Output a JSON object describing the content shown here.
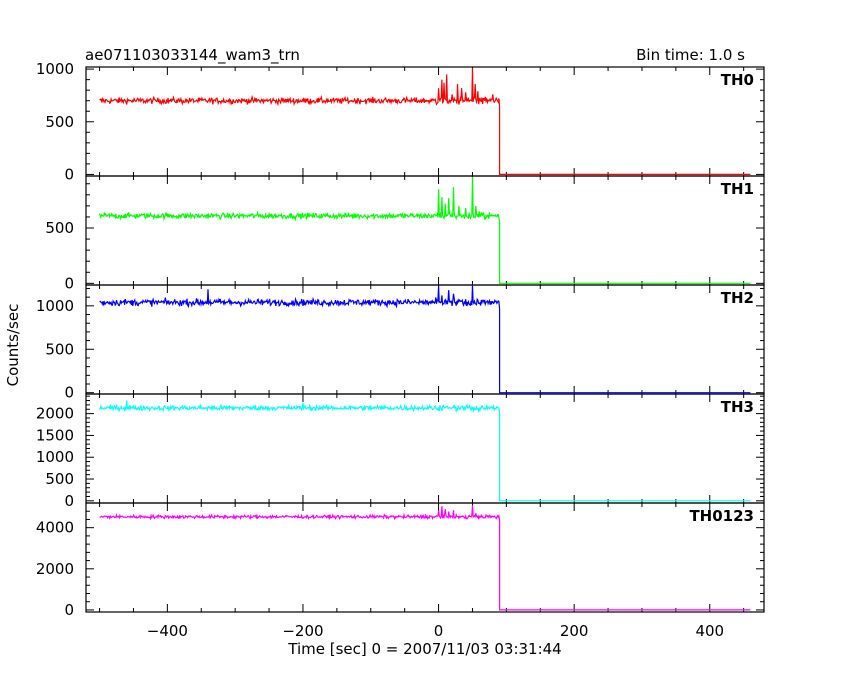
{
  "chart_data": {
    "type": "line",
    "title_left": "ae071103033144_wam3_trn",
    "title_right": "Bin time: 1.0 s",
    "xlabel": "Time [sec] 0 = 2007/11/03 03:31:44",
    "ylabel": "Counts/sec",
    "xlim": [
      -520,
      480
    ],
    "x_ticks": [
      -400,
      -200,
      0,
      200,
      400
    ],
    "x_tick_labels": [
      "−400",
      "−200",
      "0",
      "200",
      "400"
    ],
    "grid": false,
    "panels": [
      {
        "name": "TH0",
        "color": "#ff0000",
        "ylim": [
          -15,
          1020
        ],
        "y_ticks": [
          0,
          500,
          1000
        ],
        "y_tick_labels": [
          "0",
          "500",
          "1000"
        ],
        "baseline": 700,
        "noise": 28,
        "cutoff_x": 90,
        "x_range": [
          -500,
          460
        ],
        "spikes": [
          [
            0,
            820
          ],
          [
            5,
            900
          ],
          [
            8,
            870
          ],
          [
            12,
            950
          ],
          [
            20,
            760
          ],
          [
            28,
            860
          ],
          [
            34,
            820
          ],
          [
            40,
            780
          ],
          [
            50,
            1010
          ],
          [
            54,
            860
          ],
          [
            58,
            790
          ],
          [
            80,
            760
          ]
        ]
      },
      {
        "name": "TH1",
        "color": "#00ff00",
        "ylim": [
          -15,
          970
        ],
        "y_ticks": [
          0,
          500
        ],
        "y_tick_labels": [
          "0",
          "500"
        ],
        "baseline": 610,
        "noise": 25,
        "cutoff_x": 90,
        "x_range": [
          -500,
          460
        ],
        "spikes": [
          [
            0,
            850
          ],
          [
            5,
            780
          ],
          [
            10,
            720
          ],
          [
            15,
            770
          ],
          [
            22,
            870
          ],
          [
            30,
            700
          ],
          [
            40,
            680
          ],
          [
            50,
            960
          ],
          [
            55,
            700
          ],
          [
            60,
            650
          ]
        ]
      },
      {
        "name": "TH2",
        "color": "#0000ff",
        "ylim": [
          -15,
          1240
        ],
        "y_ticks": [
          0,
          500,
          1000
        ],
        "y_tick_labels": [
          "0",
          "500",
          "1000"
        ],
        "baseline": 1040,
        "noise": 38,
        "cutoff_x": 90,
        "x_range": [
          -500,
          460
        ],
        "spikes": [
          [
            -340,
            1190
          ],
          [
            0,
            1230
          ],
          [
            5,
            1120
          ],
          [
            15,
            1180
          ],
          [
            22,
            1140
          ],
          [
            50,
            1240
          ]
        ]
      },
      {
        "name": "TH3",
        "color": "#00ffff",
        "ylim": [
          -50,
          2450
        ],
        "y_ticks": [
          0,
          500,
          1000,
          1500,
          2000
        ],
        "y_tick_labels": [
          "0",
          "500",
          "1000",
          "1500",
          "2000"
        ],
        "baseline": 2130,
        "noise": 55,
        "cutoff_x": 90,
        "x_range": [
          -500,
          460
        ],
        "spikes": [
          [
            -460,
            2300
          ],
          [
            -200,
            2250
          ]
        ]
      },
      {
        "name": "TH0123",
        "color": "#ff00ff",
        "ylim": [
          -100,
          5200
        ],
        "y_ticks": [
          0,
          2000,
          4000
        ],
        "y_tick_labels": [
          "0",
          "2000",
          "4000"
        ],
        "baseline": 4530,
        "noise": 80,
        "cutoff_x": 90,
        "x_range": [
          -500,
          460
        ],
        "spikes": [
          [
            0,
            4850
          ],
          [
            5,
            5050
          ],
          [
            10,
            4900
          ],
          [
            15,
            4780
          ],
          [
            22,
            4850
          ],
          [
            50,
            5100
          ],
          [
            55,
            4700
          ]
        ]
      }
    ]
  }
}
